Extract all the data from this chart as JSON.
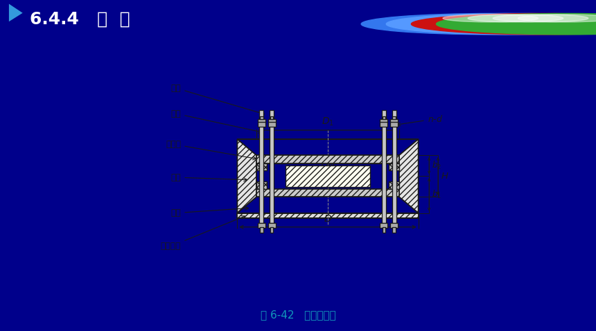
{
  "title": "6.4.4   视  镜",
  "title_bg_color": "#00008B",
  "title_text_color": "#FFFFFF",
  "body_bg_color": "#E8EEF5",
  "caption": "图 6-42   不带颈视镜",
  "caption_color": "#1199BB",
  "line_color": "#1a1a1a",
  "button_colors": [
    "#3377EE",
    "#5599FF",
    "#CC1111",
    "#33AA33"
  ],
  "labels": [
    "螺母",
    "螺栓",
    "压紧环",
    "接缘",
    "衬垫",
    "视镜玻璃"
  ]
}
